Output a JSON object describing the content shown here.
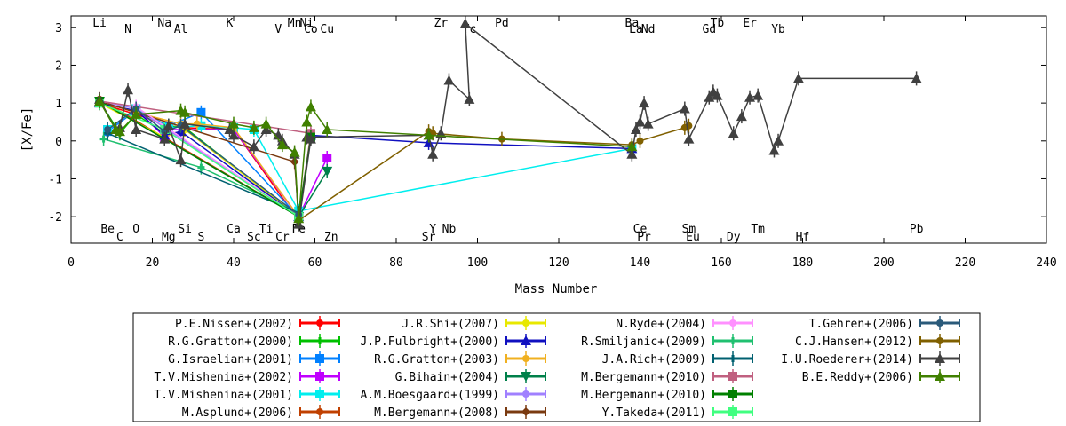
{
  "chart_data": {
    "type": "line",
    "xlabel": "Mass Number",
    "ylabel": "[X/Fe]",
    "xlim": [
      0,
      240
    ],
    "ylim": [
      -2.7,
      3.3
    ],
    "xticks": [
      0,
      20,
      40,
      60,
      80,
      100,
      120,
      140,
      160,
      180,
      200,
      220,
      240
    ],
    "yticks": [
      -2,
      -1,
      0,
      1,
      2,
      3
    ],
    "grid": false,
    "legend_position": "bottom",
    "element_labels_top": [
      {
        "label": "Li",
        "x": 7
      },
      {
        "label": "N",
        "x": 14
      },
      {
        "label": "Na",
        "x": 23
      },
      {
        "label": "Al",
        "x": 27
      },
      {
        "label": "K",
        "x": 39
      },
      {
        "label": "V",
        "x": 51
      },
      {
        "label": "Mn",
        "x": 55
      },
      {
        "label": "Co",
        "x": 59
      },
      {
        "label": "Ni",
        "x": 58
      },
      {
        "label": "Cu",
        "x": 63
      },
      {
        "label": "Zr",
        "x": 91
      },
      {
        "label": "Tc",
        "x": 98
      },
      {
        "label": "Pd",
        "x": 106
      },
      {
        "label": "La",
        "x": 139
      },
      {
        "label": "Ba",
        "x": 138
      },
      {
        "label": "Nd",
        "x": 142
      },
      {
        "label": "Tb",
        "x": 159
      },
      {
        "label": "Gd",
        "x": 157
      },
      {
        "label": "Er",
        "x": 167
      },
      {
        "label": "Yb",
        "x": 174
      }
    ],
    "element_labels_bottom": [
      {
        "label": "Be",
        "x": 9
      },
      {
        "label": "C",
        "x": 12
      },
      {
        "label": "O",
        "x": 16
      },
      {
        "label": "Mg",
        "x": 24
      },
      {
        "label": "Si",
        "x": 28
      },
      {
        "label": "S",
        "x": 32
      },
      {
        "label": "Ca",
        "x": 40
      },
      {
        "label": "Sc",
        "x": 45
      },
      {
        "label": "Ti",
        "x": 48
      },
      {
        "label": "Cr",
        "x": 52
      },
      {
        "label": "Fe",
        "x": 56
      },
      {
        "label": "Zn",
        "x": 64
      },
      {
        "label": "Y",
        "x": 89
      },
      {
        "label": "Sr",
        "x": 88
      },
      {
        "label": "Nb",
        "x": 93
      },
      {
        "label": "Pr",
        "x": 141
      },
      {
        "label": "Ce",
        "x": 140
      },
      {
        "label": "Eu",
        "x": 153
      },
      {
        "label": "Sm",
        "x": 152
      },
      {
        "label": "Dy",
        "x": 163
      },
      {
        "label": "Tm",
        "x": 169
      },
      {
        "label": "Hf",
        "x": 180
      },
      {
        "label": "Pb",
        "x": 208
      }
    ],
    "series": [
      {
        "name": "P.E.Nissen+(2002)",
        "color": "#ff0000",
        "marker": "circle",
        "points": [
          [
            7,
            1.0
          ],
          [
            16,
            0.7
          ],
          [
            24,
            0.4
          ],
          [
            28,
            0.35
          ],
          [
            40,
            0.3
          ],
          [
            56,
            -2.1
          ]
        ]
      },
      {
        "name": "R.G.Gratton+(2000)",
        "color": "#00c000",
        "marker": "x",
        "points": [
          [
            7,
            1.05
          ],
          [
            12,
            0.2
          ],
          [
            16,
            0.7
          ],
          [
            23,
            0.2
          ],
          [
            24,
            0.4
          ],
          [
            28,
            0.35
          ],
          [
            56,
            -2.0
          ]
        ]
      },
      {
        "name": "G.Israelian+(2001)",
        "color": "#0080ff",
        "marker": "square",
        "points": [
          [
            9,
            0.25
          ],
          [
            16,
            0.8
          ],
          [
            24,
            0.4
          ],
          [
            32,
            0.75
          ],
          [
            56,
            -2.0
          ]
        ]
      },
      {
        "name": "T.V.Mishenina+(2002)",
        "color": "#c000ff",
        "marker": "square",
        "points": [
          [
            9,
            0.3
          ],
          [
            16,
            0.85
          ],
          [
            23,
            0.1
          ],
          [
            24,
            0.3
          ],
          [
            40,
            0.3
          ],
          [
            56,
            -2.0
          ],
          [
            63,
            -0.45
          ]
        ]
      },
      {
        "name": "T.V.Mishenina+(2001)",
        "color": "#00eeee",
        "marker": "square",
        "points": [
          [
            9,
            0.3
          ],
          [
            16,
            0.85
          ],
          [
            24,
            0.35
          ],
          [
            32,
            0.4
          ],
          [
            40,
            0.35
          ],
          [
            45,
            0.3
          ],
          [
            56,
            -1.85
          ],
          [
            138,
            -0.2
          ]
        ]
      },
      {
        "name": "M.Asplund+(2006)",
        "color": "#c04000",
        "marker": "circle",
        "points": [
          [
            7,
            1.1
          ],
          [
            56,
            -2.0
          ]
        ]
      },
      {
        "name": "J.R.Shi+(2007)",
        "color": "#e8e800",
        "marker": "circle",
        "points": [
          [
            7,
            1.0
          ],
          [
            23,
            0.1
          ],
          [
            28,
            0.3
          ],
          [
            56,
            -2.0
          ]
        ]
      },
      {
        "name": "J.P.Fulbright+(2000)",
        "color": "#1010c0",
        "marker": "triangle",
        "points": [
          [
            7,
            1.0
          ],
          [
            16,
            0.8
          ],
          [
            23,
            0.15
          ],
          [
            27,
            0.25
          ],
          [
            56,
            -2.0
          ],
          [
            59,
            0.15
          ],
          [
            88,
            -0.05
          ],
          [
            138,
            -0.2
          ]
        ]
      },
      {
        "name": "R.G.Gratton+(2003)",
        "color": "#f0b020",
        "marker": "circle",
        "points": [
          [
            7,
            1.05
          ],
          [
            16,
            0.75
          ],
          [
            27,
            0.45
          ],
          [
            31,
            0.45
          ],
          [
            40,
            0.35
          ],
          [
            56,
            -2.0
          ]
        ]
      },
      {
        "name": "G.Bihain+(2004)",
        "color": "#00804a",
        "marker": "triangle-down",
        "points": [
          [
            7,
            1.05
          ],
          [
            56,
            -2.0
          ],
          [
            63,
            -0.8
          ]
        ]
      },
      {
        "name": "A.M.Boesgaard+(1999)",
        "color": "#a080ff",
        "marker": "circle",
        "points": [
          [
            7,
            1.05
          ],
          [
            16,
            0.85
          ],
          [
            56,
            -2.0
          ]
        ]
      },
      {
        "name": "M.Bergemann+(2008)",
        "color": "#7a3a10",
        "marker": "diamond",
        "points": [
          [
            7,
            1.05
          ],
          [
            55,
            -0.55
          ],
          [
            56,
            -2.0
          ]
        ]
      },
      {
        "name": "N.Ryde+(2004)",
        "color": "#ff90ff",
        "marker": "circle",
        "points": [
          [
            7,
            1.05
          ],
          [
            16,
            0.9
          ],
          [
            56,
            -2.0
          ]
        ]
      },
      {
        "name": "R.Smiljanic+(2009)",
        "color": "#20c070",
        "marker": "x",
        "points": [
          [
            8,
            0.05
          ],
          [
            32,
            -0.7
          ],
          [
            56,
            -1.9
          ]
        ]
      },
      {
        "name": "J.A.Rich+(2009)",
        "color": "#006070",
        "marker": "x",
        "points": [
          [
            9,
            0.2
          ],
          [
            56,
            -1.9
          ]
        ]
      },
      {
        "name": "M.Bergemann+(2010)",
        "color": "#c06080",
        "marker": "square",
        "points": [
          [
            7,
            1.05
          ],
          [
            59,
            0.2
          ],
          [
            56,
            -2.0
          ]
        ]
      },
      {
        "name": "M.Bergemann+(2010)",
        "color": "#008000",
        "marker": "square",
        "points": [
          [
            7,
            1.05
          ],
          [
            56,
            -2.0
          ],
          [
            59,
            0.1
          ]
        ]
      },
      {
        "name": "Y.Takeda+(2011)",
        "color": "#40ff80",
        "marker": "square",
        "points": [
          [
            7,
            1.0
          ],
          [
            23,
            0.3
          ],
          [
            56,
            -2.0
          ]
        ]
      },
      {
        "name": "T.Gehren+(2006)",
        "color": "#2a5a7a",
        "marker": "circle",
        "points": [
          [
            9,
            0.3
          ],
          [
            16,
            0.85
          ],
          [
            23,
            0.25
          ],
          [
            27,
            0.4
          ],
          [
            56,
            -1.95
          ]
        ]
      },
      {
        "name": "C.J.Hansen+(2012)",
        "color": "#806000",
        "marker": "circle",
        "points": [
          [
            56,
            -2.1
          ],
          [
            88,
            0.25
          ],
          [
            89,
            0.2
          ],
          [
            106,
            0.05
          ],
          [
            138,
            -0.1
          ],
          [
            140,
            0.0
          ],
          [
            151,
            0.35
          ],
          [
            152,
            0.4
          ]
        ]
      },
      {
        "name": "I.U.Roederer+(2014)",
        "color": "#404040",
        "marker": "triangle",
        "points": [
          [
            7,
            1.1
          ],
          [
            11,
            0.3
          ],
          [
            12,
            0.35
          ],
          [
            14,
            1.35
          ],
          [
            16,
            0.3
          ],
          [
            23,
            0.05
          ],
          [
            24,
            0.4
          ],
          [
            27,
            -0.5
          ],
          [
            28,
            0.45
          ],
          [
            39,
            0.3
          ],
          [
            40,
            0.15
          ],
          [
            45,
            -0.15
          ],
          [
            48,
            0.3
          ],
          [
            51,
            0.15
          ],
          [
            52,
            0.0
          ],
          [
            55,
            -0.35
          ],
          [
            56,
            -2.2
          ],
          [
            59,
            0.05
          ],
          [
            58,
            0.1
          ],
          [
            88,
            0.15
          ],
          [
            89,
            -0.35
          ],
          [
            91,
            0.2
          ],
          [
            93,
            1.6
          ],
          [
            98,
            1.1
          ],
          [
            97,
            3.1
          ],
          [
            138,
            -0.35
          ],
          [
            139,
            0.3
          ],
          [
            140,
            0.5
          ],
          [
            141,
            1.0
          ],
          [
            142,
            0.45
          ],
          [
            151,
            0.85
          ],
          [
            152,
            0.05
          ],
          [
            157,
            1.15
          ],
          [
            158,
            1.3
          ],
          [
            159,
            1.2
          ],
          [
            163,
            0.2
          ],
          [
            165,
            0.65
          ],
          [
            167,
            1.15
          ],
          [
            169,
            1.2
          ],
          [
            173,
            -0.25
          ],
          [
            174,
            0.0
          ],
          [
            179,
            1.65
          ],
          [
            208,
            1.65
          ]
        ]
      },
      {
        "name": "B.E.Reddy+(2006)",
        "color": "#408000",
        "marker": "triangle",
        "points": [
          [
            7,
            1.05
          ],
          [
            11,
            0.3
          ],
          [
            12,
            0.25
          ],
          [
            16,
            0.7
          ],
          [
            27,
            0.8
          ],
          [
            28,
            0.75
          ],
          [
            40,
            0.45
          ],
          [
            45,
            0.35
          ],
          [
            48,
            0.45
          ],
          [
            52,
            -0.1
          ],
          [
            55,
            -0.3
          ],
          [
            56,
            -2.05
          ],
          [
            58,
            0.5
          ],
          [
            59,
            0.9
          ],
          [
            63,
            0.3
          ],
          [
            88,
            0.15
          ],
          [
            138,
            -0.15
          ]
        ]
      }
    ]
  }
}
